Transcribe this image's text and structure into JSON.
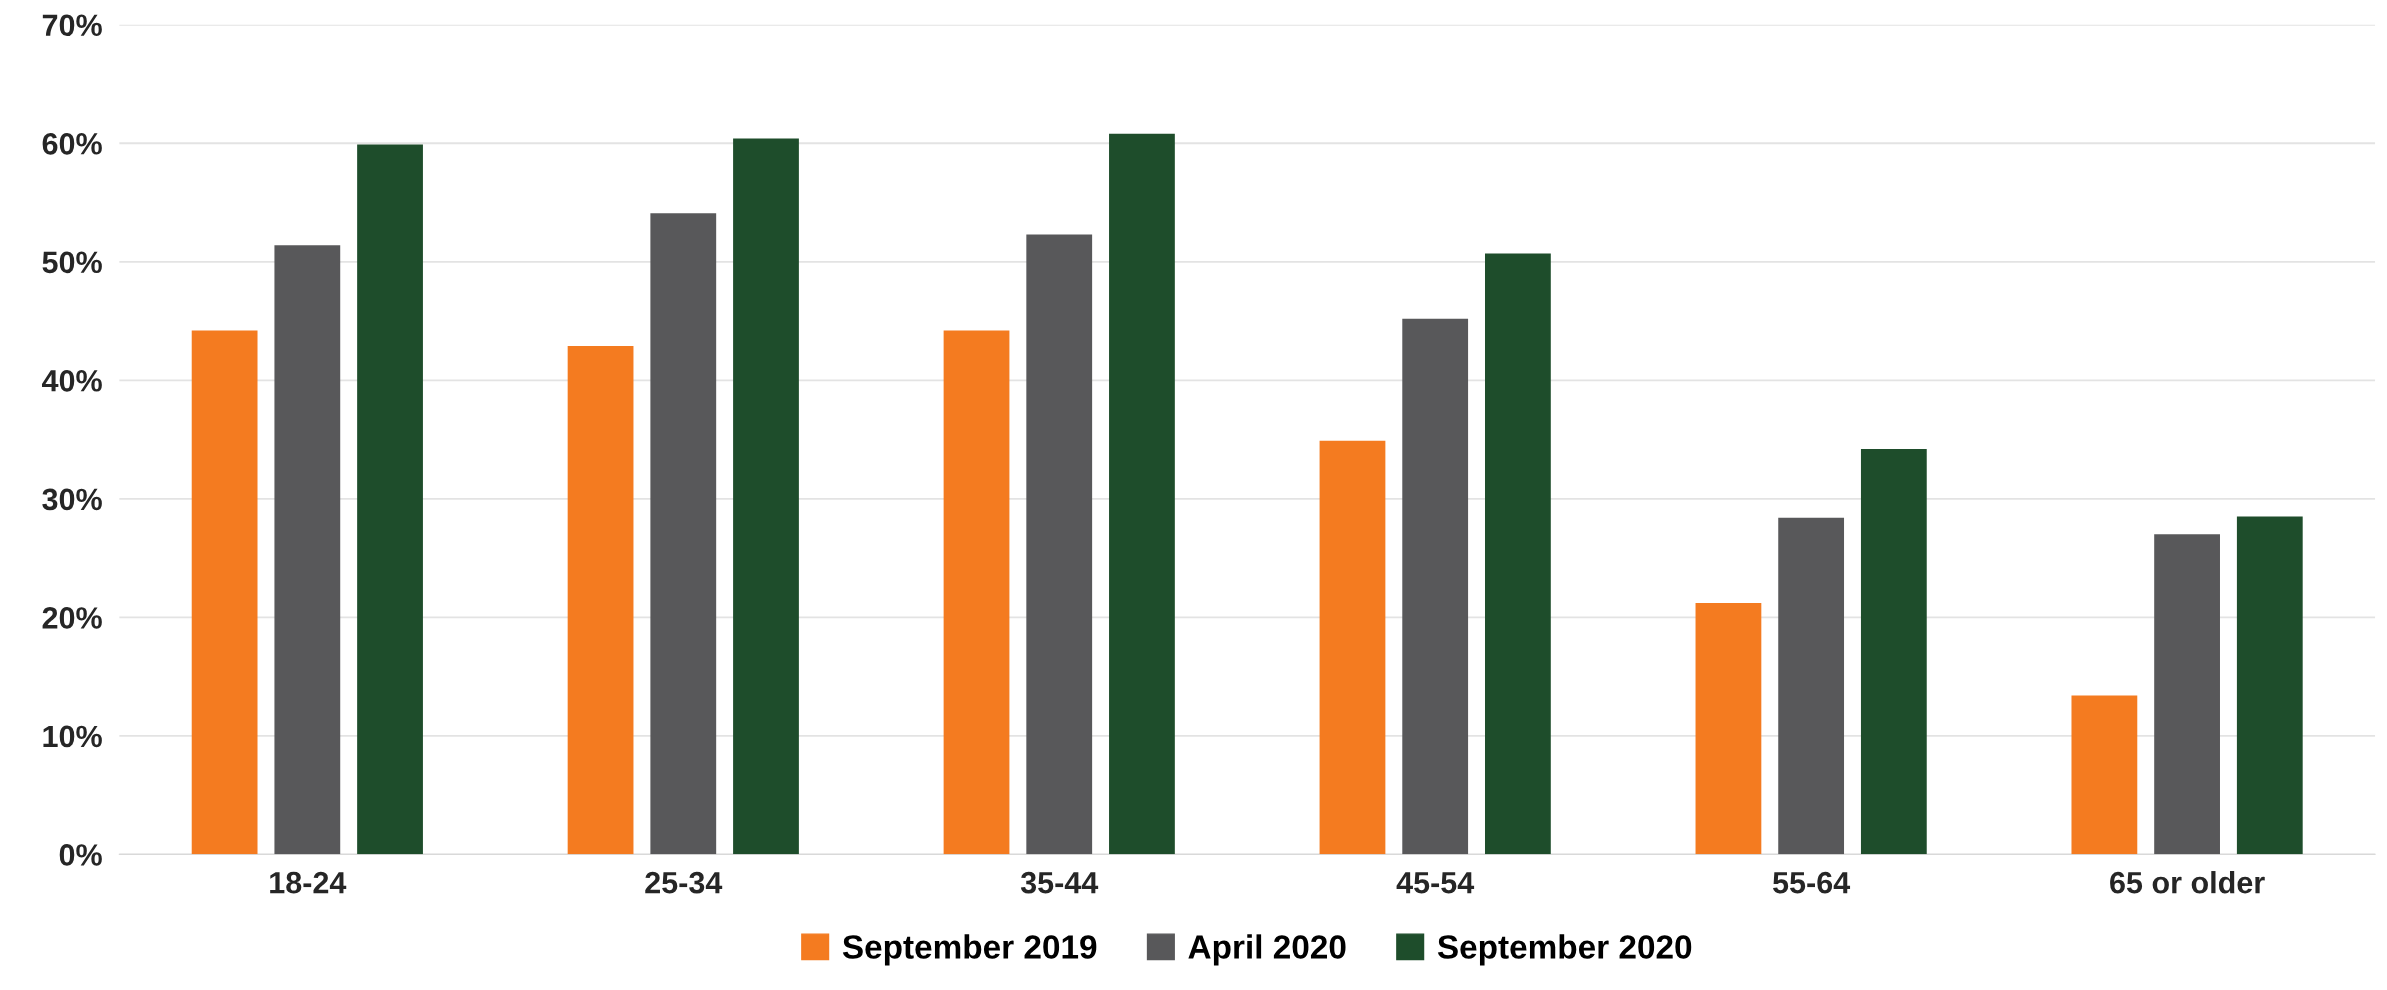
{
  "chart_data": {
    "type": "bar",
    "categories": [
      "18-24",
      "25-34",
      "35-44",
      "45-54",
      "55-64",
      "65 or older"
    ],
    "series": [
      {
        "name": "September 2019",
        "color": "#f47b20",
        "values": [
          44.2,
          42.9,
          44.2,
          34.9,
          21.2,
          13.4
        ]
      },
      {
        "name": "April 2020",
        "color": "#58585a",
        "values": [
          51.4,
          54.1,
          52.3,
          45.2,
          28.4,
          27.0
        ]
      },
      {
        "name": "September 2020",
        "color": "#1e4d2b",
        "values": [
          59.9,
          60.4,
          60.8,
          50.7,
          34.2,
          28.5
        ]
      }
    ],
    "ylim": [
      0,
      70
    ],
    "yticks": [
      {
        "value": 0,
        "label": "0%"
      },
      {
        "value": 10,
        "label": "10%"
      },
      {
        "value": 20,
        "label": "20%"
      },
      {
        "value": 30,
        "label": "30%"
      },
      {
        "value": 40,
        "label": "40%"
      },
      {
        "value": 50,
        "label": "50%"
      },
      {
        "value": 60,
        "label": "60%"
      },
      {
        "value": 70,
        "label": "70%"
      }
    ],
    "grid": "y",
    "legend": "bottom"
  }
}
